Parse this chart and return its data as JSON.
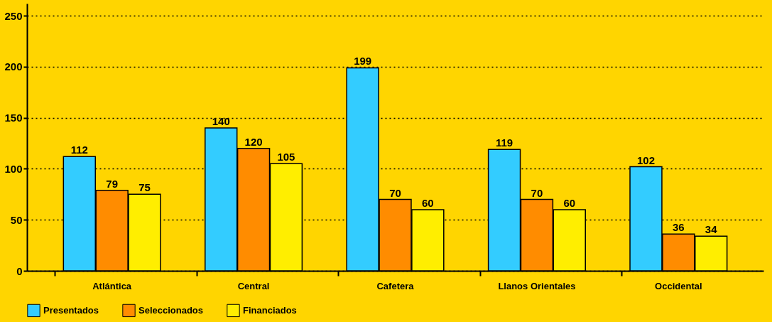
{
  "chart_data": {
    "type": "bar",
    "categories": [
      "Atlántica",
      "Central",
      "Cafetera",
      "Llanos Orientales",
      "Occidental"
    ],
    "series": [
      {
        "name": "Presentados",
        "color": "#33ccff",
        "values": [
          112,
          140,
          199,
          119,
          102
        ]
      },
      {
        "name": "Seleccionados",
        "color": "#ff8c00",
        "values": [
          79,
          120,
          70,
          70,
          36
        ]
      },
      {
        "name": "Financiados",
        "color": "#ffee00",
        "values": [
          75,
          105,
          60,
          60,
          34
        ]
      }
    ],
    "ylim": [
      0,
      262
    ],
    "yticks": [
      0,
      50,
      100,
      150,
      200,
      250
    ],
    "grid": "y",
    "legend": "bottom left",
    "data_labels": true
  }
}
